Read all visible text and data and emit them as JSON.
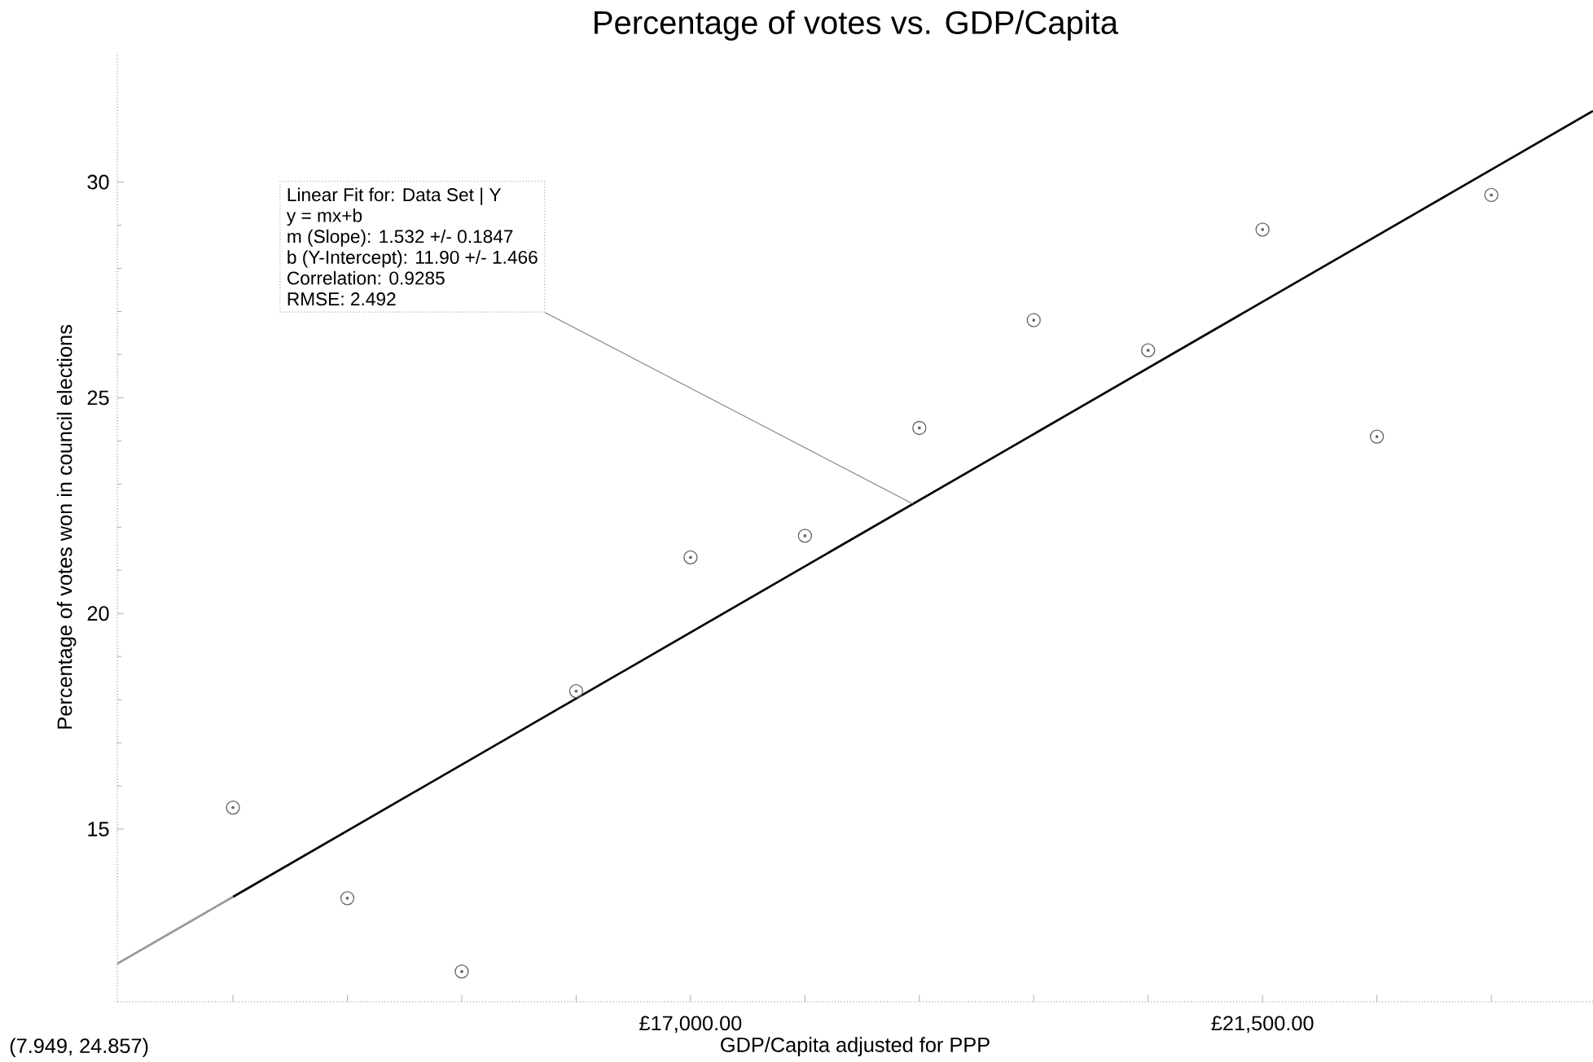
{
  "chart_data": {
    "type": "scatter",
    "title": "Percentage of votes vs. GDP/Capita",
    "xlabel": "GDP/Capita adjusted for PPP",
    "ylabel": "Percentage of votes won in council elections",
    "xlim": [
      12490,
      24100
    ],
    "ylim": [
      11,
      33
    ],
    "xticks": [
      {
        "value": 13400,
        "label": null
      },
      {
        "value": 14300,
        "label": null
      },
      {
        "value": 15200,
        "label": null
      },
      {
        "value": 16100,
        "label": null
      },
      {
        "value": 17000,
        "label": "£17,000.00"
      },
      {
        "value": 17900,
        "label": null
      },
      {
        "value": 18800,
        "label": null
      },
      {
        "value": 19700,
        "label": null
      },
      {
        "value": 20600,
        "label": null
      },
      {
        "value": 21500,
        "label": "£21,500.00"
      },
      {
        "value": 22400,
        "label": null
      },
      {
        "value": 23300,
        "label": null
      }
    ],
    "yticks": [
      15,
      20,
      25,
      30
    ],
    "line_style": "solid",
    "grid": false,
    "series": [
      {
        "marker": "circle",
        "color": "#666666",
        "x": [
          13400,
          14300,
          15200,
          16100,
          17000,
          17900,
          18800,
          19700,
          20600,
          21500,
          22400,
          23300
        ],
        "values": [
          15.5,
          13.4,
          11.7,
          18.2,
          21.3,
          21.8,
          24.3,
          26.8,
          26.1,
          28.9,
          24.1,
          29.7
        ]
      },
      {
        "type": "line",
        "color": "#000000",
        "x": [
          13400,
          24100
        ],
        "values": [
          13.43,
          31.65
        ]
      },
      {
        "type": "line",
        "color": "#999999",
        "x": [
          12490,
          13400
        ],
        "values": [
          11.88,
          13.43
        ]
      }
    ],
    "annotations": [
      "Linear Fit for: Data Set | Y",
      "y = mx+b",
      "m (Slope): 1.532 +/- 0.1847",
      "b (Y-Intercept): 11.90 +/- 1.466",
      "Correlation: 0.9285",
      "RMSE: 2.492",
      "(7.949, 24.857)"
    ]
  }
}
